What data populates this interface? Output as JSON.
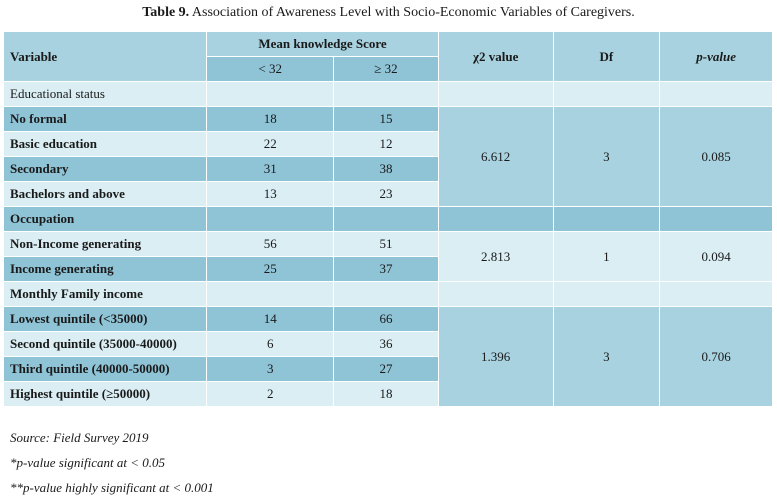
{
  "caption": {
    "label": "Table 9.",
    "text": " Association of Awareness Level with Socio-Economic Variables of Caregivers."
  },
  "header": {
    "variable": "Variable",
    "mean_score": "Mean knowledge Score",
    "lt32": "< 32",
    "ge32": "≥ 32",
    "chi2": "χ2 value",
    "df": "Df",
    "pvalue": "p-value"
  },
  "groups": [
    {
      "title": "Educational status",
      "rows": [
        {
          "label": "No formal",
          "lt32": "18",
          "ge32": "15"
        },
        {
          "label": "Basic education",
          "lt32": "22",
          "ge32": "12"
        },
        {
          "label": "Secondary",
          "lt32": "31",
          "ge32": "38"
        },
        {
          "label": "Bachelors and above",
          "lt32": "13",
          "ge32": "23"
        }
      ],
      "chi2": "6.612",
      "df": "3",
      "p": "0.085"
    },
    {
      "title": "Occupation",
      "rows": [
        {
          "label": "Non-Income generating",
          "lt32": "56",
          "ge32": "51"
        },
        {
          "label": "Income generating",
          "lt32": "25",
          "ge32": "37"
        }
      ],
      "chi2": "2.813",
      "df": "1",
      "p": "0.094"
    },
    {
      "title": "Monthly Family income",
      "rows": [
        {
          "label": "Lowest quintile (<35000)",
          "lt32": "14",
          "ge32": "66"
        },
        {
          "label": "Second quintile (35000-40000)",
          "lt32": "6",
          "ge32": "36"
        },
        {
          "label": "Third quintile (40000-50000)",
          "lt32": "3",
          "ge32": "27"
        },
        {
          "label": "Highest quintile (≥50000)",
          "lt32": "2",
          "ge32": "18"
        }
      ],
      "chi2": "1.396",
      "df": "3",
      "p": "0.706"
    }
  ],
  "notes": [
    "Source: Field Survey 2019",
    "*p-value significant at < 0.05",
    "**p-value highly significant at < 0.001"
  ]
}
